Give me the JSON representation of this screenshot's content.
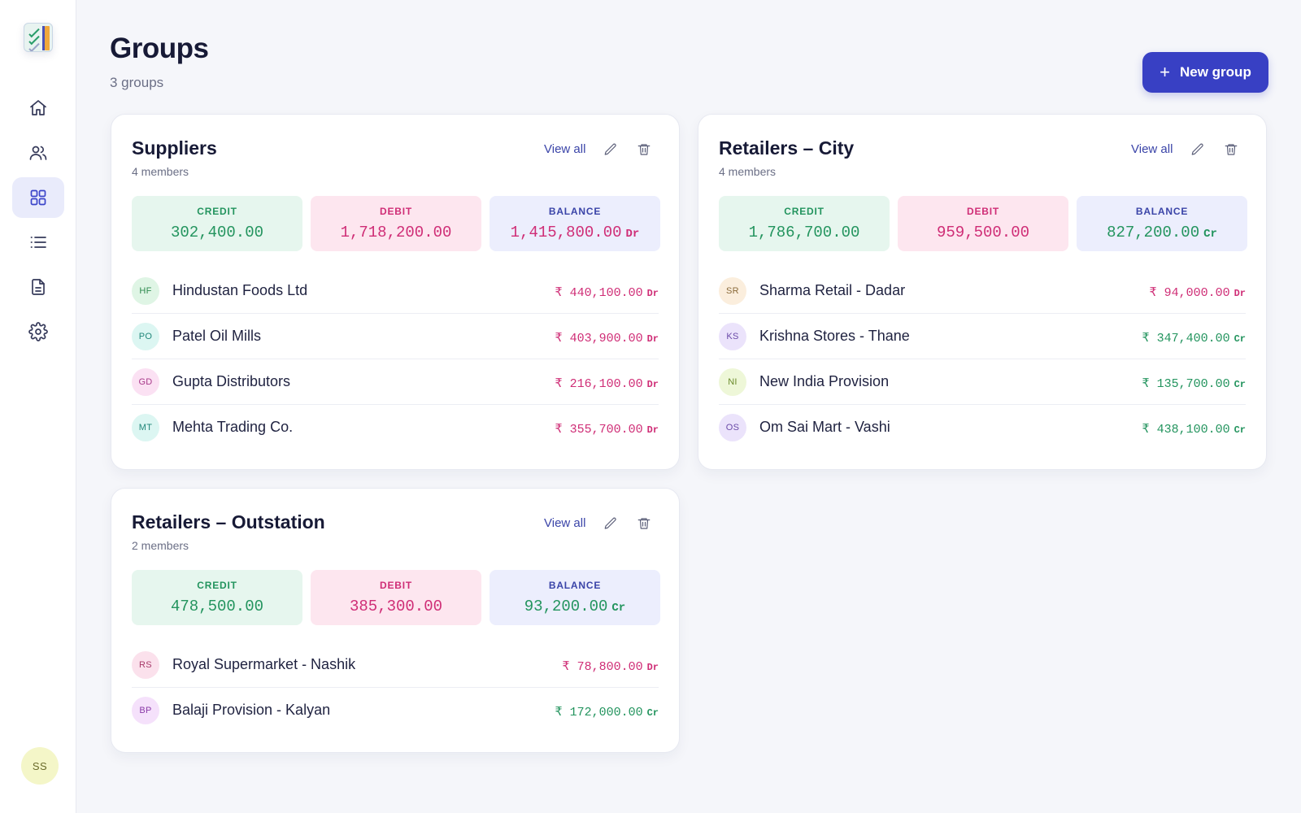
{
  "page": {
    "title": "Groups",
    "subtitle": "3 groups",
    "new_button_label": "New group"
  },
  "sidebar": {
    "items": [
      {
        "name": "home",
        "icon": "home-icon",
        "active": false
      },
      {
        "name": "users",
        "icon": "users-icon",
        "active": false
      },
      {
        "name": "groups",
        "icon": "grid-icon",
        "active": true
      },
      {
        "name": "list",
        "icon": "list-icon",
        "active": false
      },
      {
        "name": "reports",
        "icon": "document-icon",
        "active": false
      },
      {
        "name": "settings",
        "icon": "gear-icon",
        "active": false
      }
    ],
    "user_initials": "SS"
  },
  "labels": {
    "view_all": "View all",
    "credit": "CREDIT",
    "debit": "DEBIT",
    "balance": "BALANCE",
    "currency_symbol": "₹"
  },
  "groups": [
    {
      "name": "Suppliers",
      "members_label": "4 members",
      "credit": "302,400.00",
      "debit": "1,718,200.00",
      "balance": "1,415,800.00",
      "balance_type": "Dr",
      "members": [
        {
          "initials": "HF",
          "name": "Hindustan Foods Ltd",
          "amount": "440,100.00",
          "type": "Dr",
          "avatar_bg": "#dff5e5",
          "avatar_fg": "#2e8a4e"
        },
        {
          "initials": "PO",
          "name": "Patel Oil Mills",
          "amount": "403,900.00",
          "type": "Dr",
          "avatar_bg": "#dcf6f2",
          "avatar_fg": "#21877a"
        },
        {
          "initials": "GD",
          "name": "Gupta Distributors",
          "amount": "216,100.00",
          "type": "Dr",
          "avatar_bg": "#fbe1f3",
          "avatar_fg": "#a83a8a"
        },
        {
          "initials": "MT",
          "name": "Mehta Trading Co.",
          "amount": "355,700.00",
          "type": "Dr",
          "avatar_bg": "#dcf6f2",
          "avatar_fg": "#21877a"
        }
      ]
    },
    {
      "name": "Retailers – City",
      "members_label": "4 members",
      "credit": "1,786,700.00",
      "debit": "959,500.00",
      "balance": "827,200.00",
      "balance_type": "Cr",
      "members": [
        {
          "initials": "SR",
          "name": "Sharma Retail - Dadar",
          "amount": "94,000.00",
          "type": "Dr",
          "avatar_bg": "#fbeedd",
          "avatar_fg": "#8a6a3a"
        },
        {
          "initials": "KS",
          "name": "Krishna Stores - Thane",
          "amount": "347,400.00",
          "type": "Cr",
          "avatar_bg": "#ebe3fb",
          "avatar_fg": "#6a4aa8"
        },
        {
          "initials": "NI",
          "name": "New India Provision",
          "amount": "135,700.00",
          "type": "Cr",
          "avatar_bg": "#eef7d8",
          "avatar_fg": "#6a8a2a"
        },
        {
          "initials": "OS",
          "name": "Om Sai Mart - Vashi",
          "amount": "438,100.00",
          "type": "Cr",
          "avatar_bg": "#ebe3fb",
          "avatar_fg": "#6a4aa8"
        }
      ]
    },
    {
      "name": "Retailers – Outstation",
      "members_label": "2 members",
      "credit": "478,500.00",
      "debit": "385,300.00",
      "balance": "93,200.00",
      "balance_type": "Cr",
      "members": [
        {
          "initials": "RS",
          "name": "Royal Supermarket - Nashik",
          "amount": "78,800.00",
          "type": "Dr",
          "avatar_bg": "#fbe1ec",
          "avatar_fg": "#a83a6a"
        },
        {
          "initials": "BP",
          "name": "Balaji Provision - Kalyan",
          "amount": "172,000.00",
          "type": "Cr",
          "avatar_bg": "#f5e1fb",
          "avatar_fg": "#8a3aa8"
        }
      ]
    }
  ],
  "colors": {
    "accent": "#3840c4",
    "debit": "#cf2d76",
    "credit": "#23945e"
  }
}
